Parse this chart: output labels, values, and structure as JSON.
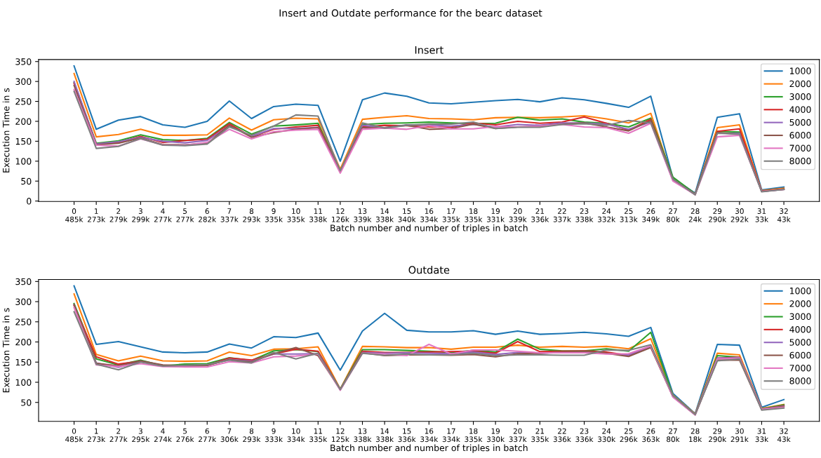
{
  "chart_data": [
    {
      "type": "line",
      "title": "Insert",
      "annotations": [
        "Insert and Outdate performance for the bearc dataset"
      ],
      "xlabel": "Batch number and number of triples in batch",
      "ylabel": "Execution Time in s",
      "ylim": [
        -1,
        355
      ],
      "yticks": [
        0,
        50,
        100,
        150,
        200,
        250,
        300,
        350
      ],
      "legend": "top right",
      "grid": false,
      "categories": [
        "0\n485k",
        "1\n273k",
        "2\n279k",
        "3\n299k",
        "4\n277k",
        "5\n277k",
        "6\n282k",
        "7\n337k",
        "8\n293k",
        "9\n335k",
        "10\n335k",
        "11\n338k",
        "12\n126k",
        "13\n339k",
        "14\n338k",
        "15\n340k",
        "16\n334k",
        "17\n335k",
        "18\n335k",
        "19\n331k",
        "20\n339k",
        "21\n336k",
        "22\n337k",
        "23\n338k",
        "24\n332k",
        "25\n313k",
        "26\n349k",
        "27\n80k",
        "28\n24k",
        "29\n290k",
        "30\n292k",
        "31\n33k",
        "32\n43k"
      ],
      "series": [
        {
          "name": "1000",
          "color": "#1f77b4",
          "values": [
            339,
            180,
            203,
            212,
            191,
            185,
            200,
            251,
            207,
            237,
            243,
            240,
            100,
            254,
            271,
            263,
            246,
            244,
            248,
            252,
            255,
            249,
            259,
            254,
            245,
            235,
            263,
            57,
            20,
            210,
            219,
            28,
            35
          ]
        },
        {
          "name": "2000",
          "color": "#ff7f0e",
          "values": [
            320,
            161,
            167,
            180,
            165,
            165,
            166,
            208,
            178,
            204,
            208,
            206,
            80,
            205,
            210,
            214,
            207,
            206,
            204,
            209,
            210,
            209,
            211,
            214,
            206,
            196,
            220,
            55,
            17,
            184,
            191,
            26,
            32
          ]
        },
        {
          "name": "3000",
          "color": "#2ca02c",
          "values": [
            297,
            145,
            151,
            166,
            154,
            152,
            157,
            197,
            168,
            188,
            191,
            195,
            75,
            192,
            195,
            196,
            198,
            196,
            194,
            195,
            210,
            203,
            206,
            198,
            195,
            186,
            208,
            60,
            18,
            175,
            173,
            25,
            30
          ]
        },
        {
          "name": "4000",
          "color": "#d62728",
          "values": [
            295,
            143,
            147,
            162,
            147,
            152,
            155,
            194,
            161,
            180,
            186,
            190,
            74,
            186,
            190,
            189,
            186,
            185,
            196,
            191,
            200,
            195,
            198,
            211,
            195,
            178,
            205,
            53,
            17,
            175,
            181,
            25,
            30
          ]
        },
        {
          "name": "5000",
          "color": "#9467bd",
          "values": [
            300,
            143,
            149,
            160,
            150,
            146,
            152,
            189,
            162,
            182,
            182,
            185,
            75,
            190,
            184,
            191,
            191,
            188,
            192,
            186,
            192,
            190,
            196,
            196,
            193,
            180,
            198,
            51,
            17,
            170,
            170,
            24,
            29
          ]
        },
        {
          "name": "6000",
          "color": "#8c564b",
          "values": [
            290,
            141,
            145,
            158,
            142,
            141,
            145,
            190,
            160,
            172,
            180,
            184,
            72,
            184,
            184,
            190,
            180,
            182,
            193,
            182,
            186,
            187,
            193,
            196,
            186,
            176,
            202,
            55,
            16,
            172,
            167,
            24,
            29
          ]
        },
        {
          "name": "7000",
          "color": "#e377c2",
          "values": [
            280,
            140,
            138,
            156,
            141,
            140,
            147,
            180,
            156,
            174,
            178,
            180,
            70,
            180,
            183,
            180,
            189,
            181,
            181,
            187,
            186,
            188,
            192,
            186,
            184,
            170,
            195,
            50,
            16,
            161,
            165,
            24,
            29
          ]
        },
        {
          "name": "8000",
          "color": "#7f7f7f",
          "values": [
            275,
            132,
            137,
            157,
            140,
            139,
            143,
            186,
            165,
            188,
            216,
            213,
            76,
            196,
            183,
            190,
            193,
            193,
            198,
            182,
            185,
            185,
            192,
            194,
            190,
            202,
            196,
            55,
            16,
            170,
            168,
            23,
            29
          ]
        }
      ]
    },
    {
      "type": "line",
      "title": "Outdate",
      "xlabel": "Batch number and number of triples in batch",
      "ylabel": "Execution Time in s",
      "ylim": [
        3,
        355
      ],
      "yticks": [
        50,
        100,
        150,
        200,
        250,
        300,
        350
      ],
      "legend": "top right",
      "grid": false,
      "categories": [
        "0\n485k",
        "1\n273k",
        "2\n277k",
        "3\n295k",
        "4\n274k",
        "5\n276k",
        "6\n277k",
        "7\n306k",
        "8\n293k",
        "9\n333k",
        "10\n334k",
        "11\n335k",
        "12\n125k",
        "13\n338k",
        "14\n338k",
        "15\n336k",
        "16\n334k",
        "17\n334k",
        "18\n335k",
        "19\n330k",
        "20\n337k",
        "21\n335k",
        "22\n336k",
        "23\n336k",
        "24\n330k",
        "25\n296k",
        "26\n363k",
        "27\n80k",
        "28\n18k",
        "29\n290k",
        "30\n291k",
        "31\n33k",
        "32\n43k"
      ],
      "series": [
        {
          "name": "1000",
          "color": "#1f77b4",
          "values": [
            339,
            194,
            201,
            188,
            175,
            173,
            175,
            195,
            185,
            213,
            211,
            222,
            130,
            227,
            271,
            229,
            225,
            225,
            228,
            219,
            227,
            219,
            221,
            224,
            220,
            214,
            236,
            72,
            22,
            194,
            192,
            38,
            57
          ]
        },
        {
          "name": "2000",
          "color": "#ff7f0e",
          "values": [
            319,
            169,
            153,
            165,
            153,
            152,
            153,
            175,
            166,
            182,
            183,
            188,
            83,
            189,
            188,
            186,
            186,
            182,
            187,
            187,
            192,
            187,
            189,
            187,
            189,
            183,
            208,
            68,
            21,
            172,
            168,
            35,
            45
          ]
        },
        {
          "name": "3000",
          "color": "#2ca02c",
          "values": [
            295,
            158,
            143,
            155,
            141,
            145,
            146,
            161,
            154,
            178,
            181,
            176,
            83,
            181,
            181,
            179,
            177,
            174,
            179,
            175,
            207,
            182,
            178,
            178,
            183,
            177,
            224,
            67,
            20,
            166,
            162,
            34,
            44
          ]
        },
        {
          "name": "4000",
          "color": "#d62728",
          "values": [
            290,
            163,
            145,
            152,
            141,
            141,
            142,
            160,
            155,
            170,
            182,
            177,
            82,
            177,
            174,
            174,
            175,
            176,
            177,
            172,
            201,
            176,
            177,
            178,
            175,
            167,
            189,
            65,
            20,
            160,
            162,
            33,
            42
          ]
        },
        {
          "name": "5000",
          "color": "#9467bd",
          "values": [
            292,
            148,
            137,
            151,
            141,
            140,
            142,
            157,
            152,
            170,
            170,
            171,
            82,
            174,
            172,
            173,
            172,
            171,
            175,
            169,
            174,
            172,
            174,
            174,
            171,
            168,
            189,
            65,
            20,
            160,
            161,
            33,
            41
          ]
        },
        {
          "name": "6000",
          "color": "#8c564b",
          "values": [
            293,
            147,
            141,
            153,
            143,
            141,
            142,
            156,
            150,
            171,
            186,
            166,
            82,
            173,
            166,
            168,
            168,
            167,
            169,
            163,
            171,
            172,
            175,
            177,
            172,
            164,
            186,
            64,
            19,
            155,
            155,
            32,
            40
          ]
        },
        {
          "name": "7000",
          "color": "#e377c2",
          "values": [
            285,
            143,
            139,
            146,
            139,
            138,
            138,
            151,
            148,
            163,
            165,
            170,
            80,
            172,
            170,
            166,
            194,
            170,
            180,
            180,
            177,
            173,
            173,
            173,
            170,
            171,
            190,
            63,
            19,
            158,
            160,
            33,
            38
          ]
        },
        {
          "name": "8000",
          "color": "#7f7f7f",
          "values": [
            275,
            145,
            131,
            150,
            140,
            142,
            144,
            155,
            148,
            174,
            158,
            172,
            82,
            172,
            167,
            170,
            168,
            168,
            172,
            166,
            168,
            168,
            167,
            167,
            180,
            179,
            193,
            67,
            20,
            153,
            158,
            31,
            36
          ]
        }
      ]
    }
  ]
}
